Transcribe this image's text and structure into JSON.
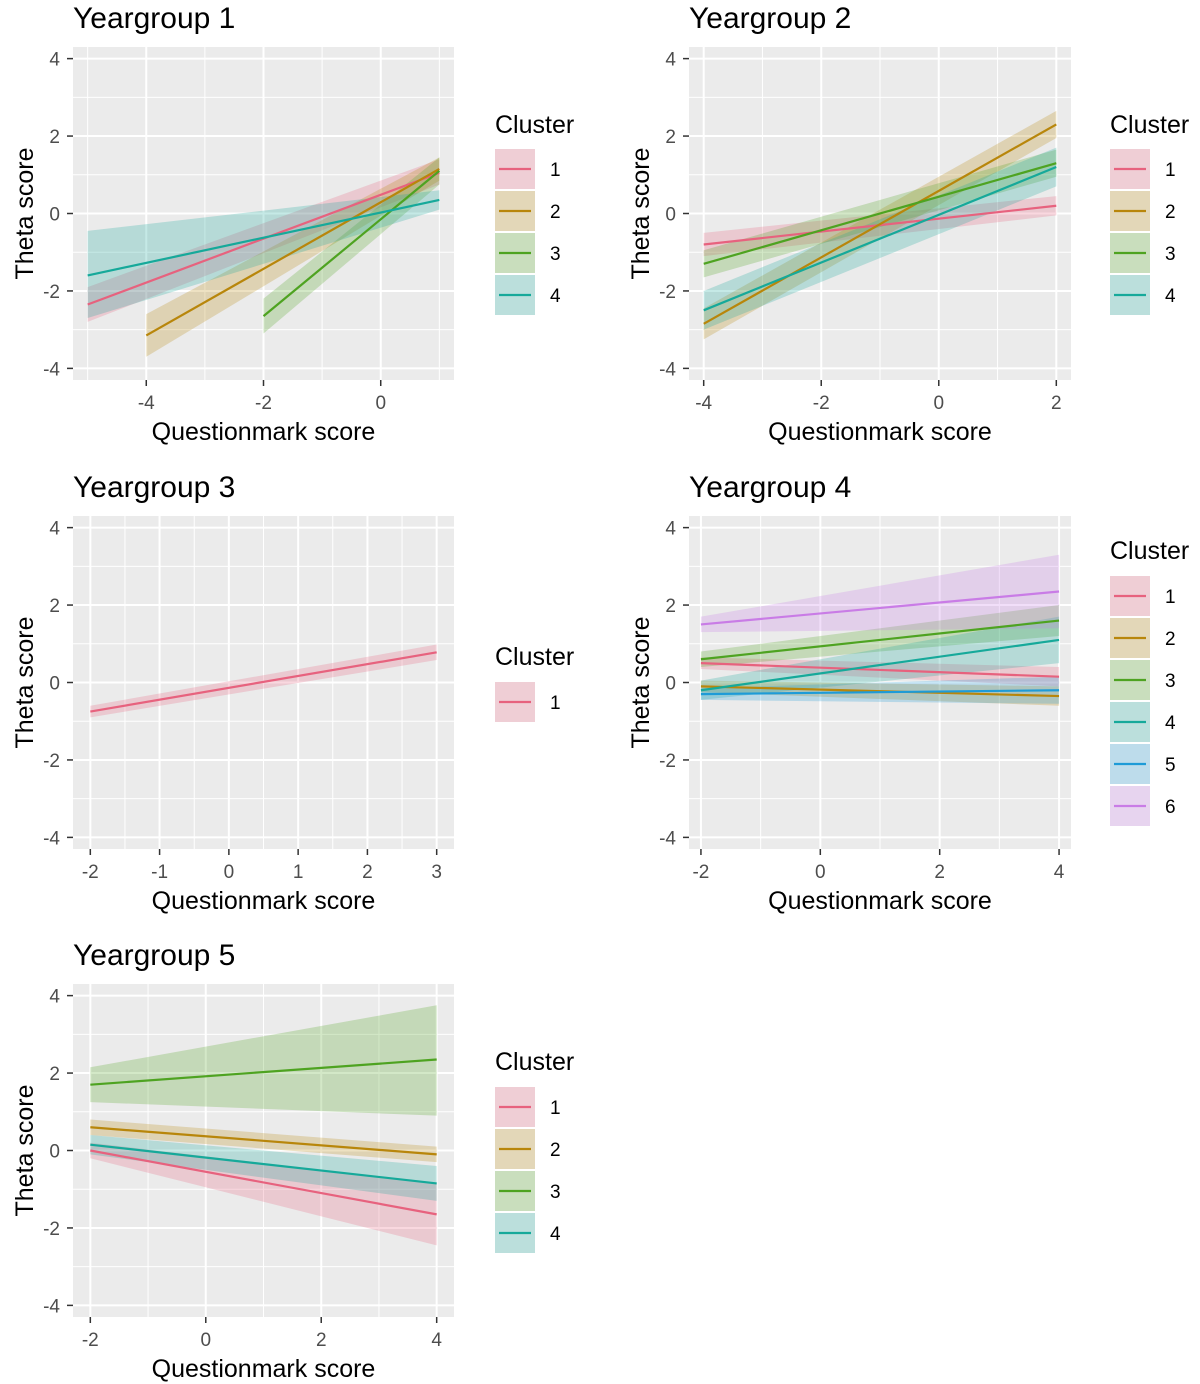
{
  "cluster_colors": {
    "1": "#E7627E",
    "2": "#B8860B",
    "3": "#4EA321",
    "4": "#16A99A",
    "5": "#1E9BD7",
    "6": "#C97CE6"
  },
  "panel_background": "#EBEBEB",
  "grid_color": "#FFFFFF",
  "chart_data": [
    {
      "type": "line",
      "title": "Yeargroup 1",
      "xlabel": "Questionmark score",
      "ylabel": "Theta score",
      "xlim": [
        -5.25,
        1.25
      ],
      "ylim": [
        -4.3,
        4.3
      ],
      "xticks": [
        -4,
        -2,
        0
      ],
      "xtick_labels": [
        "-4",
        "-2",
        "0"
      ],
      "yticks": [
        -4,
        -2,
        0,
        2,
        4
      ],
      "ytick_labels": [
        "-4",
        "-2",
        "0",
        "2",
        "4"
      ],
      "legend_title": "Cluster",
      "legend_position": "right",
      "series": [
        {
          "name": "1",
          "x": [
            -5,
            1
          ],
          "y": [
            -2.35,
            1.05
          ],
          "lower": [
            -2.8,
            0.75
          ],
          "upper": [
            -1.9,
            1.4
          ]
        },
        {
          "name": "2",
          "x": [
            -4,
            1
          ],
          "y": [
            -3.15,
            1.15
          ],
          "lower": [
            -3.7,
            0.85
          ],
          "upper": [
            -2.6,
            1.45
          ]
        },
        {
          "name": "3",
          "x": [
            -2,
            1
          ],
          "y": [
            -2.65,
            1.1
          ],
          "lower": [
            -3.1,
            0.75
          ],
          "upper": [
            -2.2,
            1.45
          ]
        },
        {
          "name": "4",
          "x": [
            -5,
            1
          ],
          "y": [
            -1.6,
            0.35
          ],
          "lower": [
            -2.7,
            0.1
          ],
          "upper": [
            -0.45,
            0.6
          ]
        }
      ]
    },
    {
      "type": "line",
      "title": "Yeargroup 2",
      "xlabel": "Questionmark score",
      "ylabel": "Theta score",
      "xlim": [
        -4.25,
        2.25
      ],
      "ylim": [
        -4.3,
        4.3
      ],
      "xticks": [
        -4,
        -2,
        0,
        2
      ],
      "xtick_labels": [
        "-4",
        "-2",
        "0",
        "2"
      ],
      "yticks": [
        -4,
        -2,
        0,
        2,
        4
      ],
      "ytick_labels": [
        "-4",
        "-2",
        "0",
        "2",
        "4"
      ],
      "legend_title": "Cluster",
      "legend_position": "right",
      "series": [
        {
          "name": "1",
          "x": [
            -4,
            2
          ],
          "y": [
            -0.8,
            0.2
          ],
          "lower": [
            -1.1,
            -0.05
          ],
          "upper": [
            -0.5,
            0.45
          ]
        },
        {
          "name": "2",
          "x": [
            -4,
            2
          ],
          "y": [
            -2.85,
            2.3
          ],
          "lower": [
            -3.25,
            1.95
          ],
          "upper": [
            -2.45,
            2.65
          ]
        },
        {
          "name": "3",
          "x": [
            -4,
            2
          ],
          "y": [
            -1.3,
            1.3
          ],
          "lower": [
            -1.65,
            0.95
          ],
          "upper": [
            -0.95,
            1.65
          ]
        },
        {
          "name": "4",
          "x": [
            -4,
            2
          ],
          "y": [
            -2.5,
            1.2
          ],
          "lower": [
            -3.0,
            0.7
          ],
          "upper": [
            -2.0,
            1.7
          ]
        }
      ]
    },
    {
      "type": "line",
      "title": "Yeargroup 3",
      "xlabel": "Questionmark score",
      "ylabel": "Theta score",
      "xlim": [
        -2.25,
        3.25
      ],
      "ylim": [
        -4.3,
        4.3
      ],
      "xticks": [
        -2,
        -1,
        0,
        1,
        2,
        3
      ],
      "xtick_labels": [
        "-2",
        "-1",
        "0",
        "1",
        "2",
        "3"
      ],
      "yticks": [
        -4,
        -2,
        0,
        2,
        4
      ],
      "ytick_labels": [
        "-4",
        "-2",
        "0",
        "2",
        "4"
      ],
      "legend_title": "Cluster",
      "legend_position": "right",
      "series": [
        {
          "name": "1",
          "x": [
            -2,
            3
          ],
          "y": [
            -0.75,
            0.78
          ],
          "lower": [
            -0.9,
            0.58
          ],
          "upper": [
            -0.6,
            0.98
          ]
        }
      ]
    },
    {
      "type": "line",
      "title": "Yeargroup 4",
      "xlabel": "Questionmark score",
      "ylabel": "Theta score",
      "xlim": [
        -2.2,
        4.2
      ],
      "ylim": [
        -4.3,
        4.3
      ],
      "xticks": [
        -2,
        0,
        2,
        4
      ],
      "xtick_labels": [
        "-2",
        "0",
        "2",
        "4"
      ],
      "yticks": [
        -4,
        -2,
        0,
        2,
        4
      ],
      "ytick_labels": [
        "-4",
        "-2",
        "0",
        "2",
        "4"
      ],
      "legend_title": "Cluster",
      "legend_position": "right",
      "series": [
        {
          "name": "1",
          "x": [
            -2,
            4
          ],
          "y": [
            0.5,
            0.15
          ],
          "lower": [
            0.35,
            -0.1
          ],
          "upper": [
            0.65,
            0.4
          ]
        },
        {
          "name": "2",
          "x": [
            -2,
            4
          ],
          "y": [
            -0.1,
            -0.35
          ],
          "lower": [
            -0.25,
            -0.6
          ],
          "upper": [
            0.05,
            -0.1
          ]
        },
        {
          "name": "3",
          "x": [
            -2,
            4
          ],
          "y": [
            0.6,
            1.6
          ],
          "lower": [
            0.4,
            1.2
          ],
          "upper": [
            0.8,
            2.0
          ]
        },
        {
          "name": "4",
          "x": [
            -2,
            4
          ],
          "y": [
            -0.2,
            1.1
          ],
          "lower": [
            -0.45,
            0.5
          ],
          "upper": [
            0.05,
            1.7
          ]
        },
        {
          "name": "5",
          "x": [
            -2,
            4
          ],
          "y": [
            -0.3,
            -0.2
          ],
          "lower": [
            -0.45,
            -0.55
          ],
          "upper": [
            -0.15,
            0.15
          ]
        },
        {
          "name": "6",
          "x": [
            -2,
            4
          ],
          "y": [
            1.5,
            2.35
          ],
          "lower": [
            1.3,
            1.4
          ],
          "upper": [
            1.7,
            3.3
          ]
        }
      ]
    },
    {
      "type": "line",
      "title": "Yeargroup 5",
      "xlabel": "Questionmark score",
      "ylabel": "Theta score",
      "xlim": [
        -2.3,
        4.3
      ],
      "ylim": [
        -4.3,
        4.3
      ],
      "xticks": [
        -2,
        0,
        2,
        4
      ],
      "xtick_labels": [
        "-2",
        "0",
        "2",
        "4"
      ],
      "yticks": [
        -4,
        -2,
        0,
        2,
        4
      ],
      "ytick_labels": [
        "-4",
        "-2",
        "0",
        "2",
        "4"
      ],
      "legend_title": "Cluster",
      "legend_position": "right",
      "series": [
        {
          "name": "1",
          "x": [
            -2,
            4
          ],
          "y": [
            0.0,
            -1.65
          ],
          "lower": [
            -0.2,
            -2.45
          ],
          "upper": [
            0.2,
            -0.85
          ]
        },
        {
          "name": "2",
          "x": [
            -2,
            4
          ],
          "y": [
            0.6,
            -0.1
          ],
          "lower": [
            0.4,
            -0.3
          ],
          "upper": [
            0.8,
            0.1
          ]
        },
        {
          "name": "3",
          "x": [
            -2,
            4
          ],
          "y": [
            1.7,
            2.35
          ],
          "lower": [
            1.25,
            0.9
          ],
          "upper": [
            2.15,
            3.75
          ]
        },
        {
          "name": "4",
          "x": [
            -2,
            4
          ],
          "y": [
            0.15,
            -0.85
          ],
          "lower": [
            -0.1,
            -1.3
          ],
          "upper": [
            0.4,
            -0.4
          ]
        }
      ]
    }
  ]
}
